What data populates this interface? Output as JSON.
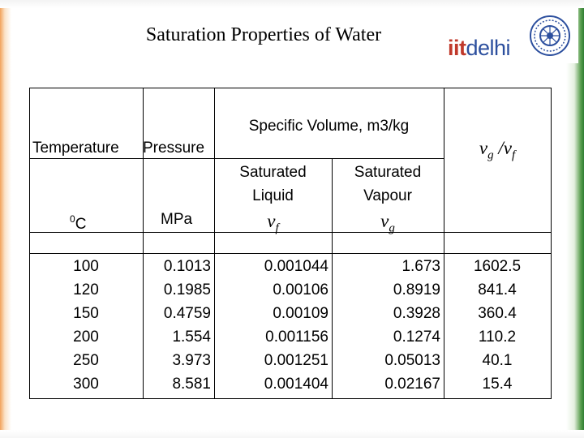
{
  "slide": {
    "title": "Saturation Properties of Water",
    "logo": {
      "part1": "iit",
      "part2": "delhi",
      "colors": {
        "iit": "#c0392b",
        "delhi": "#2c4f9e"
      }
    }
  },
  "table": {
    "headers": {
      "temperature": "Temperature",
      "pressure": "Pressure",
      "specific_volume": "Specific Volume, m3/kg",
      "sat_liquid_line1": "Saturated",
      "sat_liquid_line2": "Liquid",
      "sat_liquid_symbol": "v",
      "sat_liquid_sub": "f",
      "sat_vapour_line1": "Saturated",
      "sat_vapour_line2": "Vapour",
      "sat_vapour_symbol": "v",
      "sat_vapour_sub": "g",
      "ratio_num": "v",
      "ratio_num_sub": "g",
      "ratio_den": "v",
      "ratio_den_sub": "f",
      "ratio_slash": " /",
      "temp_unit_sup": "0",
      "temp_unit": "C",
      "pressure_unit": "MPa"
    },
    "columns": {
      "temperature": [
        "100",
        "120",
        "150",
        "200",
        "250",
        "300"
      ],
      "pressure": [
        "0.1013",
        "0.1985",
        "0.4759",
        "1.554",
        "3.973",
        "8.581"
      ],
      "vf": [
        "0.001044",
        "0.00106",
        "0.00109",
        "0.001156",
        "0.001251",
        "0.001404"
      ],
      "vg": [
        "1.673",
        "0.8919",
        "0.3928",
        "0.1274",
        "0.05013",
        "0.02167"
      ],
      "ratio": [
        "1602.5",
        "841.4",
        "360.4",
        "110.2",
        "40.1",
        "15.4"
      ]
    }
  }
}
